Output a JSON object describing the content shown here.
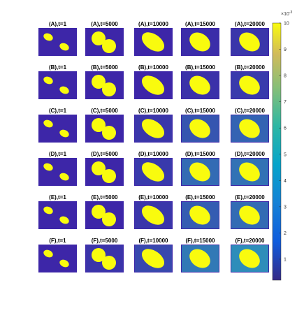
{
  "panels": [
    {
      "title": "(A),t=1"
    },
    {
      "title": "(A),t=5000"
    },
    {
      "title": "(A),t=10000"
    },
    {
      "title": "(A),t=15000"
    },
    {
      "title": "(A),t=20000"
    },
    {
      "title": "(B),t=1"
    },
    {
      "title": "(B),t=5000"
    },
    {
      "title": "(B),t=10000"
    },
    {
      "title": "(B),t=15000"
    },
    {
      "title": "(B),t=20000"
    },
    {
      "title": "(C),t=1"
    },
    {
      "title": "(C),t=5000"
    },
    {
      "title": "(C),t=10000"
    },
    {
      "title": "(C),t=15000"
    },
    {
      "title": "(C),t=20000"
    },
    {
      "title": "(D),t=1"
    },
    {
      "title": "(D),t=5000"
    },
    {
      "title": "(D),t=10000"
    },
    {
      "title": "(D),t=15000"
    },
    {
      "title": "(D),t=20000"
    },
    {
      "title": "(E),t=1"
    },
    {
      "title": "(E),t=5000"
    },
    {
      "title": "(E),t=10000"
    },
    {
      "title": "(E),t=15000"
    },
    {
      "title": "(E),t=20000"
    },
    {
      "title": "(F),t=1"
    },
    {
      "title": "(F),t=5000"
    },
    {
      "title": "(F),t=10000"
    },
    {
      "title": "(F),t=15000"
    },
    {
      "title": "(F),t=20000"
    }
  ],
  "colorbar": {
    "clim": [
      0.2,
      10
    ],
    "ticks": [
      1,
      2,
      3,
      4,
      5,
      6,
      7,
      8,
      9,
      10
    ],
    "multiplier": "×10",
    "exponent": "-3"
  }
}
